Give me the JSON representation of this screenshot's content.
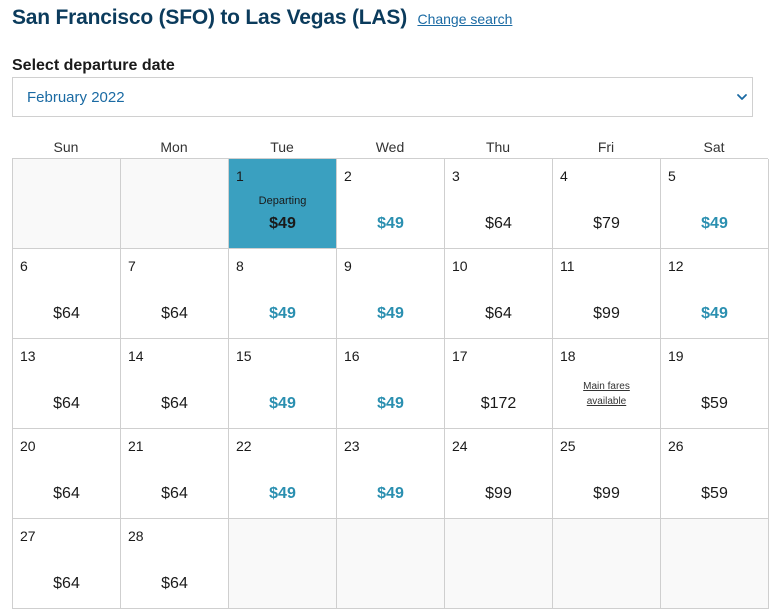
{
  "header": {
    "title": "San Francisco (SFO) to Las Vegas (LAS)",
    "change_search": "Change search"
  },
  "date_select": {
    "label": "Select departure date",
    "value": "February 2022",
    "icon": "chevron-down-icon"
  },
  "colors": {
    "selected": "#3aa0c0",
    "low_fare": "#2a8fb0",
    "title": "#0b3b5c"
  },
  "calendar": {
    "weekdays": [
      "Sun",
      "Mon",
      "Tue",
      "Wed",
      "Thu",
      "Fri",
      "Sat"
    ],
    "days": [
      {
        "day": "1",
        "price": "$49",
        "tag": "Departing",
        "selected": true
      },
      {
        "day": "2",
        "price": "$49",
        "low": true
      },
      {
        "day": "3",
        "price": "$64"
      },
      {
        "day": "4",
        "price": "$79"
      },
      {
        "day": "5",
        "price": "$49",
        "low": true
      },
      {
        "day": "6",
        "price": "$64"
      },
      {
        "day": "7",
        "price": "$64"
      },
      {
        "day": "8",
        "price": "$49",
        "low": true
      },
      {
        "day": "9",
        "price": "$49",
        "low": true
      },
      {
        "day": "10",
        "price": "$64"
      },
      {
        "day": "11",
        "price": "$99"
      },
      {
        "day": "12",
        "price": "$49",
        "low": true
      },
      {
        "day": "13",
        "price": "$64"
      },
      {
        "day": "14",
        "price": "$64"
      },
      {
        "day": "15",
        "price": "$49",
        "low": true
      },
      {
        "day": "16",
        "price": "$49",
        "low": true
      },
      {
        "day": "17",
        "price": "$172"
      },
      {
        "day": "18",
        "note_line1": "Main fares",
        "note_line2": "available"
      },
      {
        "day": "19",
        "price": "$59"
      },
      {
        "day": "20",
        "price": "$64"
      },
      {
        "day": "21",
        "price": "$64"
      },
      {
        "day": "22",
        "price": "$49",
        "low": true
      },
      {
        "day": "23",
        "price": "$49",
        "low": true
      },
      {
        "day": "24",
        "price": "$99"
      },
      {
        "day": "25",
        "price": "$99"
      },
      {
        "day": "26",
        "price": "$59"
      },
      {
        "day": "27",
        "price": "$64"
      },
      {
        "day": "28",
        "price": "$64"
      }
    ]
  }
}
